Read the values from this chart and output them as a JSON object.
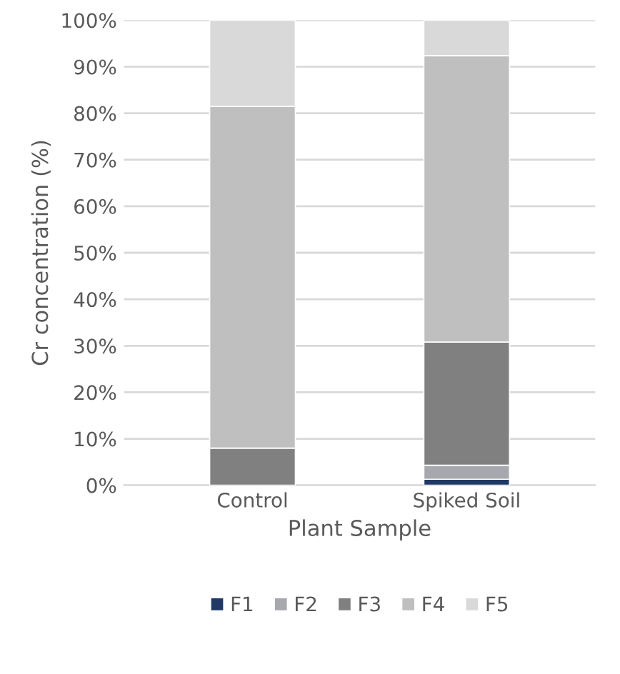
{
  "chart_data": {
    "type": "bar",
    "stacked": true,
    "xlabel": "Plant Sample",
    "ylabel": "Cr concentration (%)",
    "categories": [
      "Control",
      "Spiked Soil"
    ],
    "series": [
      {
        "name": "F1",
        "color": "#203864",
        "values": [
          0,
          1.3
        ]
      },
      {
        "name": "F2",
        "color": "#a6a8ae",
        "values": [
          0,
          3.0
        ]
      },
      {
        "name": "F3",
        "color": "#808080",
        "values": [
          8,
          26.5
        ]
      },
      {
        "name": "F4",
        "color": "#bfbfbf",
        "values": [
          73.5,
          61.6
        ]
      },
      {
        "name": "F5",
        "color": "#d9d9d9",
        "values": [
          18.5,
          7.6
        ]
      }
    ],
    "ylim": [
      0,
      100
    ],
    "yticks": [
      {
        "value": 0,
        "label": "0%"
      },
      {
        "value": 10,
        "label": "10%"
      },
      {
        "value": 20,
        "label": "20%"
      },
      {
        "value": 30,
        "label": "30%"
      },
      {
        "value": 40,
        "label": "40%"
      },
      {
        "value": 50,
        "label": "50%"
      },
      {
        "value": 60,
        "label": "60%"
      },
      {
        "value": 70,
        "label": "70%"
      },
      {
        "value": 80,
        "label": "80%"
      },
      {
        "value": 90,
        "label": "90%"
      },
      {
        "value": 100,
        "label": "100%"
      }
    ],
    "grid": "y",
    "legend": "bottom"
  }
}
